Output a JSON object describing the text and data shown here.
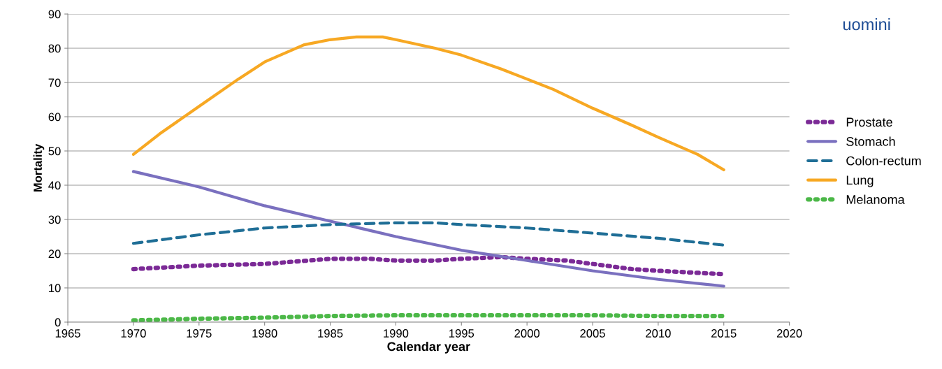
{
  "chart_data": {
    "type": "line",
    "xlabel": "Calendar year",
    "ylabel": "Mortality",
    "annotations": [
      "uomini"
    ],
    "xlim": [
      1965,
      2020
    ],
    "xticks": [
      1965,
      1970,
      1975,
      1980,
      1985,
      1990,
      1995,
      2000,
      2005,
      2010,
      2015,
      2020
    ],
    "ylim": [
      0,
      90
    ],
    "yticks": [
      0,
      10,
      20,
      30,
      40,
      50,
      60,
      70,
      80,
      90
    ],
    "grid": "y",
    "legend": "right",
    "marker": "none",
    "series": [
      {
        "name": "Prostate",
        "color": "#7b2a96",
        "line_style": "dotted",
        "x": [
          1970,
          1975,
          1980,
          1985,
          1988,
          1990,
          1993,
          1995,
          1998,
          2000,
          2003,
          2005,
          2008,
          2010,
          2015
        ],
        "values": [
          15.5,
          16.5,
          17,
          18.5,
          18.5,
          18,
          18,
          18.5,
          19,
          18.5,
          18,
          17,
          15.5,
          15,
          14
        ]
      },
      {
        "name": "Stomach",
        "color": "#7a70bf",
        "line_style": "solid",
        "x": [
          1970,
          1975,
          1980,
          1985,
          1990,
          1995,
          2000,
          2005,
          2010,
          2015
        ],
        "values": [
          44,
          39.5,
          34,
          29.5,
          25,
          21,
          18,
          15,
          12.5,
          10.5
        ]
      },
      {
        "name": "Colon-rectum",
        "color": "#1f6e96",
        "line_style": "dashed",
        "x": [
          1970,
          1975,
          1980,
          1985,
          1990,
          1993,
          1995,
          2000,
          2005,
          2010,
          2015
        ],
        "values": [
          23,
          25.5,
          27.5,
          28.5,
          29,
          29,
          28.5,
          27.5,
          26,
          24.5,
          22.5
        ]
      },
      {
        "name": "Lung",
        "color": "#f7a823",
        "line_style": "solid",
        "x": [
          1970,
          1972,
          1975,
          1978,
          1980,
          1983,
          1985,
          1987,
          1989,
          1990,
          1993,
          1995,
          1998,
          2000,
          2002,
          2005,
          2008,
          2010,
          2013,
          2015
        ],
        "values": [
          49,
          55,
          63,
          71,
          76,
          81,
          82.5,
          83.3,
          83.3,
          82.5,
          80,
          78,
          74,
          71,
          68,
          62.5,
          57.5,
          54,
          49,
          44.5
        ]
      },
      {
        "name": "Melanoma",
        "color": "#4cb848",
        "line_style": "dotted",
        "x": [
          1970,
          1975,
          1980,
          1985,
          1990,
          1995,
          2000,
          2005,
          2010,
          2015
        ],
        "values": [
          0.5,
          1,
          1.3,
          1.8,
          2,
          2,
          2,
          2,
          1.8,
          1.8
        ]
      }
    ]
  }
}
